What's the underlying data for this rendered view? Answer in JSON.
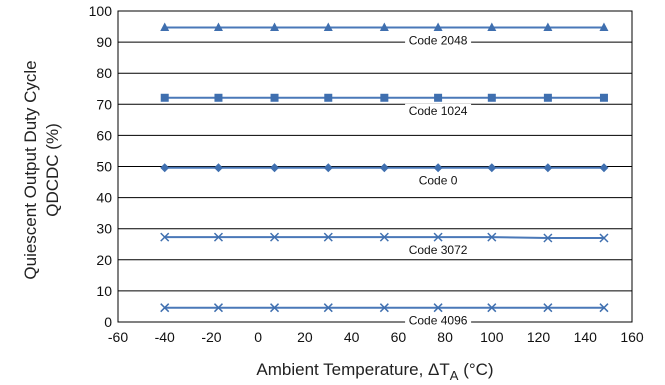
{
  "chart_data": {
    "type": "line",
    "x": [
      -40,
      -17,
      7,
      30,
      54,
      77,
      100,
      124,
      148
    ],
    "series": [
      {
        "name": "Code 2048",
        "marker": "triangle",
        "values": [
          94.7,
          94.7,
          94.7,
          94.7,
          94.7,
          94.7,
          94.7,
          94.7,
          94.7
        ]
      },
      {
        "name": "Code 1024",
        "marker": "square",
        "values": [
          72.1,
          72.1,
          72.1,
          72.1,
          72.1,
          72.1,
          72.1,
          72.1,
          72.1
        ]
      },
      {
        "name": "Code 0",
        "marker": "diamond",
        "values": [
          49.6,
          49.6,
          49.6,
          49.6,
          49.6,
          49.6,
          49.6,
          49.6,
          49.6
        ]
      },
      {
        "name": "Code 3072",
        "marker": "x",
        "values": [
          27.3,
          27.3,
          27.3,
          27.3,
          27.3,
          27.3,
          27.3,
          27.0,
          27.0
        ]
      },
      {
        "name": "Code 4096",
        "marker": "x",
        "values": [
          4.6,
          4.6,
          4.6,
          4.6,
          4.6,
          4.6,
          4.6,
          4.6,
          4.6
        ]
      }
    ],
    "xlim": [
      -60,
      160
    ],
    "ylim": [
      0,
      100
    ],
    "xticks": [
      "-60",
      "-40",
      "-20",
      "0",
      "20",
      "40",
      "60",
      "80",
      "100",
      "120",
      "140",
      "160"
    ],
    "yticks": [
      "0",
      "10",
      "20",
      "30",
      "40",
      "50",
      "60",
      "70",
      "80",
      "90",
      "100"
    ],
    "ylabel_line1": "Quiescent Output Duty Cycle",
    "ylabel_line2": "QDCDC (%)",
    "xlabel_main": "Ambient Temperature, ΔT",
    "xlabel_sub": "A",
    "xlabel_unit": " (°C)",
    "grid": "horizontal",
    "line_color": "#4a78b8",
    "marker_color": "#3f6faf"
  }
}
